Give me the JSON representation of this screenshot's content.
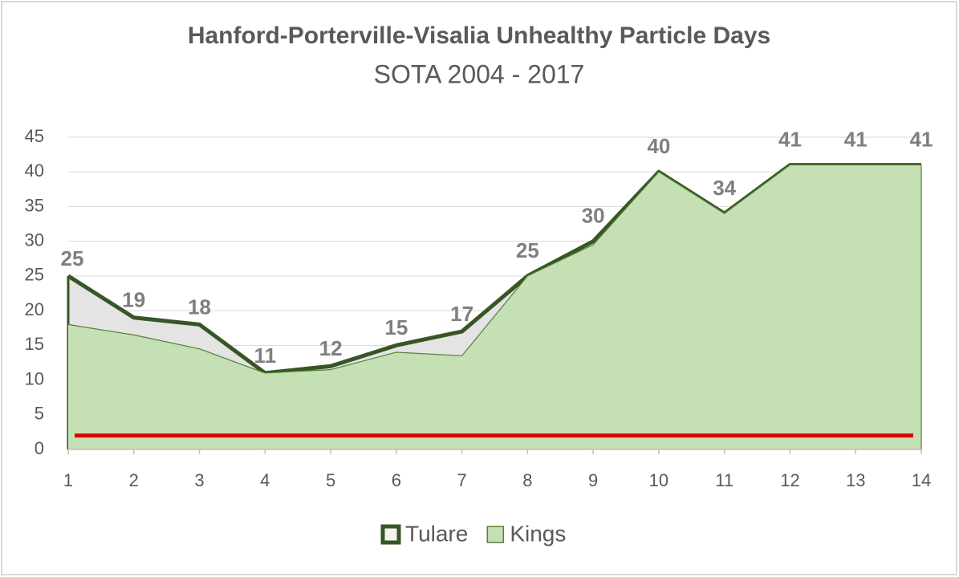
{
  "chart_data": {
    "type": "area",
    "title": "Hanford-Porterville-Visalia  Unhealthy Particle Days",
    "subtitle": "SOTA  2004 - 2017",
    "x": [
      1,
      2,
      3,
      4,
      5,
      6,
      7,
      8,
      9,
      10,
      11,
      12,
      13,
      14
    ],
    "series": [
      {
        "name": "Tulare",
        "color": "#e4e4e4",
        "line_color": "#375623",
        "values": [
          25,
          19,
          18,
          11,
          12,
          15,
          17,
          25,
          30,
          40,
          34,
          41,
          41,
          41
        ]
      },
      {
        "name": "Kings",
        "color": "#c5e0b4",
        "line_color": "#538135",
        "values": [
          18,
          16.5,
          14.5,
          11,
          11.5,
          14,
          13.5,
          25,
          29.5,
          40,
          34,
          41,
          41,
          41
        ]
      }
    ],
    "threshold": {
      "value": 2,
      "color": "#e00000"
    },
    "xlim": [
      1,
      14
    ],
    "xticks": [
      1,
      2,
      3,
      4,
      5,
      6,
      7,
      8,
      9,
      10,
      11,
      12,
      13,
      14
    ],
    "ylim": [
      0,
      45
    ],
    "yticks": [
      0,
      5,
      10,
      15,
      20,
      25,
      30,
      35,
      40,
      45
    ],
    "grid": true,
    "legend": "bottom"
  }
}
